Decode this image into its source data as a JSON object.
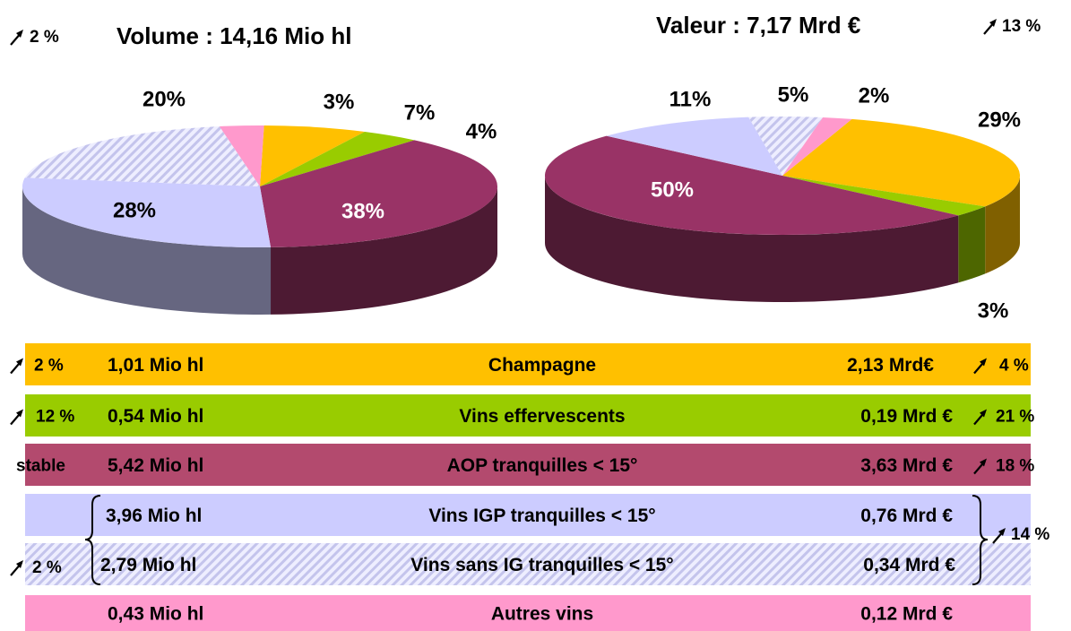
{
  "chart_data": [
    {
      "type": "pie",
      "title": "Volume : 14,16 Mio hl",
      "change": "2 %",
      "values": [
        7,
        4,
        38,
        28,
        20,
        3
      ],
      "value_labels": [
        "7%",
        "4%",
        "38%",
        "28%",
        "20%",
        "3%"
      ],
      "colors": [
        "#ffc000",
        "#99cc00",
        "#993366",
        "#ccccff",
        "#ccccff",
        "#ff99cc"
      ],
      "hatched": [
        false,
        false,
        false,
        false,
        true,
        false
      ]
    },
    {
      "type": "pie",
      "title": "Valeur : 7,17 Mrd €",
      "change": "13 %",
      "values": [
        29,
        3,
        50,
        11,
        5,
        2
      ],
      "value_labels": [
        "29%",
        "3%",
        "50%",
        "11%",
        "5%",
        "2%"
      ],
      "colors": [
        "#ffc000",
        "#99cc00",
        "#993366",
        "#ccccff",
        "#ccccff",
        "#ff99cc"
      ],
      "hatched": [
        false,
        false,
        false,
        false,
        true,
        false
      ]
    }
  ],
  "table": {
    "rows": [
      {
        "change_volume": "2 %",
        "volume": "1,01 Mio hl",
        "name": "Champagne",
        "value": "2,13 Mrd€",
        "change_value": "4 %"
      },
      {
        "change_volume": "12 %",
        "volume": "0,54 Mio hl",
        "name": "Vins effervescents",
        "value": "0,19 Mrd €",
        "change_value": "21 %"
      },
      {
        "change_volume": "stable",
        "volume": "5,42 Mio hl",
        "name": "AOP tranquilles < 15°",
        "value": "3,63 Mrd €",
        "change_value": "18 %"
      },
      {
        "volume": "3,96 Mio hl",
        "name": "Vins IGP tranquilles < 15°",
        "value": "0,76 Mrd €"
      },
      {
        "volume": "2,79 Mio hl",
        "name": "Vins sans IG tranquilles < 15°",
        "value": "0,34 Mrd €"
      },
      {
        "volume": "0,43 Mio hl",
        "name": "Autres vins",
        "value": "0,12 Mrd €"
      }
    ],
    "group": {
      "change_volume": "2 %",
      "change_value": "14 %"
    }
  }
}
